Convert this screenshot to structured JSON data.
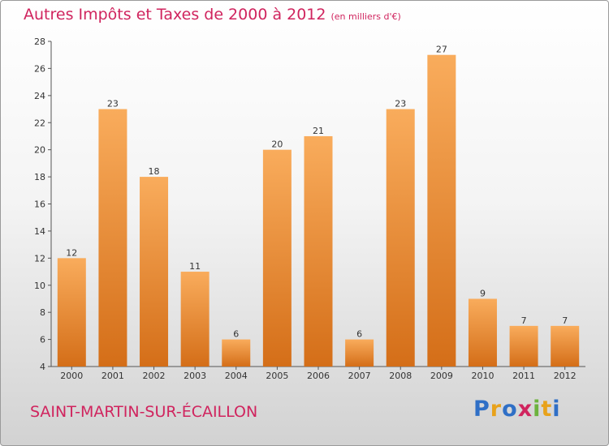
{
  "title": "Autres Impôts et Taxes de 2000 à 2012",
  "unit": "(en milliers d'€)",
  "commune": "SAINT-MARTIN-SUR-ÉCAILLON",
  "logo_letters": [
    "P",
    "r",
    "o",
    "x",
    "i",
    "t",
    "i"
  ],
  "colors": {
    "accent": "#d0245e",
    "bar_light": "#f8aa5a",
    "bar_dark": "#d46f1a",
    "axis": "#555555"
  },
  "chart_data": {
    "type": "bar",
    "title": "Autres Impôts et Taxes de 2000 à 2012",
    "xlabel": "",
    "ylabel": "",
    "categories": [
      "2000",
      "2001",
      "2002",
      "2003",
      "2004",
      "2005",
      "2006",
      "2007",
      "2008",
      "2009",
      "2010",
      "2011",
      "2012"
    ],
    "values": [
      12,
      23,
      18,
      11,
      6,
      20,
      21,
      6,
      23,
      27,
      9,
      7,
      7
    ],
    "ylim": [
      4,
      28
    ],
    "yticks": [
      4,
      6,
      8,
      10,
      12,
      14,
      16,
      18,
      20,
      22,
      24,
      26,
      28
    ],
    "grid": false
  }
}
